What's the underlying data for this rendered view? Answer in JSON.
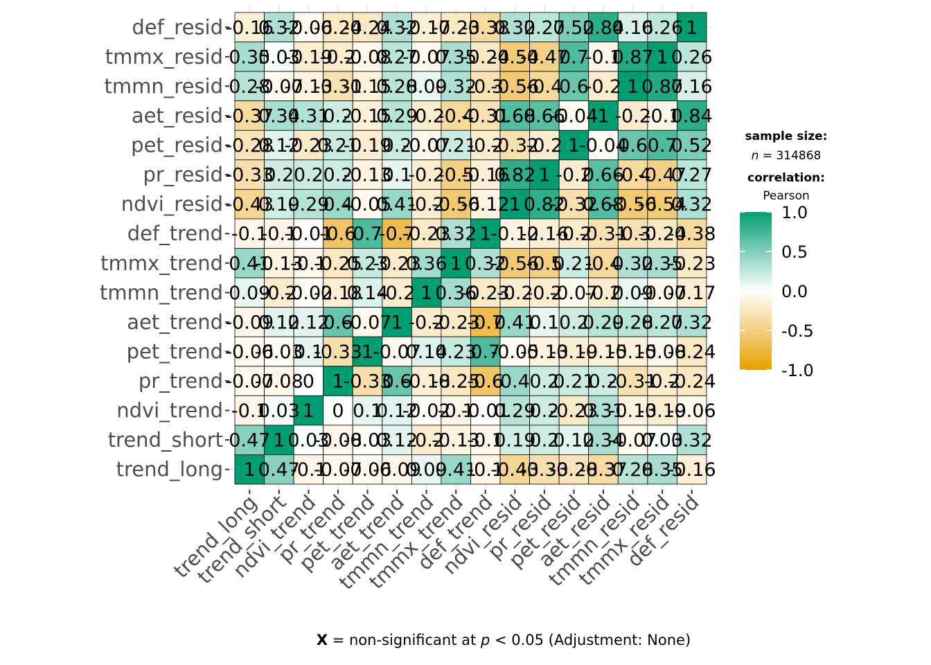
{
  "chart_data": {
    "type": "heatmap",
    "title": "",
    "xlabel": "",
    "ylabel": "",
    "variables": [
      "trend_long",
      "trend_short",
      "ndvi_trend",
      "pr_trend",
      "pet_trend",
      "aet_trend",
      "tmmn_trend",
      "tmmx_trend",
      "def_trend",
      "ndvi_resid",
      "pr_resid",
      "pet_resid",
      "aet_resid",
      "tmmn_resid",
      "tmmx_resid",
      "def_resid"
    ],
    "y_order_top_to_bottom": [
      "def_resid",
      "tmmx_resid",
      "tmmn_resid",
      "aet_resid",
      "pet_resid",
      "pr_resid",
      "ndvi_resid",
      "def_trend",
      "tmmx_trend",
      "tmmn_trend",
      "aet_trend",
      "pet_trend",
      "pr_trend",
      "ndvi_trend",
      "trend_short",
      "trend_long"
    ],
    "matrix": [
      [
        1,
        0.47,
        -0.1,
        -0.07,
        -0.06,
        -0.09,
        0.09,
        0.41,
        -0.1,
        -0.43,
        -0.33,
        -0.28,
        -0.37,
        0.28,
        0.35,
        -0.16
      ],
      [
        0.47,
        1,
        0.03,
        -0.08,
        -0.03,
        0.12,
        -0.2,
        -0.13,
        -0.1,
        0.19,
        0.2,
        0.12,
        0.34,
        -0.07,
        0.03,
        0.32
      ],
      [
        -0.1,
        0.03,
        1,
        0,
        0.1,
        0.12,
        -0.02,
        -0.1,
        -0.01,
        0.29,
        0.2,
        -0.23,
        0.31,
        -0.13,
        -0.19,
        -0.06
      ],
      [
        -0.07,
        -0.08,
        0,
        1,
        -0.33,
        0.6,
        -0.18,
        -0.25,
        -0.6,
        0.4,
        0.2,
        0.21,
        0.2,
        -0.31,
        -0.2,
        -0.24
      ],
      [
        -0.06,
        -0.03,
        0.1,
        -0.33,
        1,
        -0.07,
        0.14,
        0.23,
        0.7,
        -0.05,
        -0.13,
        -0.19,
        -0.15,
        -0.15,
        -0.08,
        -0.24
      ],
      [
        -0.09,
        0.12,
        0.12,
        0.6,
        -0.07,
        1,
        -0.2,
        -0.23,
        -0.7,
        0.41,
        0.1,
        0.2,
        0.29,
        0.28,
        0.27,
        0.32
      ],
      [
        0.09,
        -0.2,
        -0.02,
        -0.18,
        0.14,
        -0.2,
        1,
        0.36,
        -0.23,
        -0.2,
        -0.2,
        -0.07,
        -0.2,
        0.09,
        -0.07,
        -0.17
      ],
      [
        0.41,
        -0.13,
        -0.1,
        -0.25,
        0.23,
        -0.23,
        0.36,
        1,
        0.32,
        -0.56,
        -0.5,
        0.21,
        -0.4,
        0.32,
        0.35,
        -0.23
      ],
      [
        -0.1,
        -0.1,
        -0.01,
        -0.6,
        0.7,
        -0.7,
        -0.23,
        0.32,
        1,
        -0.12,
        -0.16,
        -0.2,
        -0.31,
        -0.3,
        -0.24,
        -0.38
      ],
      [
        -0.43,
        0.19,
        0.29,
        0.4,
        -0.05,
        0.41,
        -0.2,
        -0.56,
        -0.12,
        1,
        0.82,
        -0.32,
        0.68,
        -0.56,
        -0.54,
        0.32
      ],
      [
        -0.33,
        0.2,
        0.2,
        0.2,
        -0.13,
        0.1,
        -0.2,
        -0.5,
        -0.16,
        0.82,
        1,
        -0.2,
        0.66,
        -0.4,
        -0.47,
        0.27
      ],
      [
        -0.28,
        0.12,
        -0.23,
        0.21,
        -0.19,
        0.2,
        -0.07,
        0.21,
        -0.2,
        -0.32,
        -0.2,
        1,
        -0.04,
        0.6,
        0.7,
        0.52
      ],
      [
        -0.37,
        0.34,
        0.31,
        0.2,
        -0.15,
        0.29,
        -0.2,
        -0.4,
        -0.31,
        0.68,
        0.66,
        -0.04,
        1,
        -0.2,
        -0.1,
        0.84
      ],
      [
        0.28,
        -0.07,
        -0.13,
        -0.31,
        -0.15,
        0.28,
        0.09,
        0.32,
        -0.3,
        -0.56,
        -0.4,
        0.6,
        -0.2,
        1,
        0.87,
        0.16
      ],
      [
        0.35,
        0.03,
        -0.19,
        -0.2,
        -0.08,
        0.27,
        -0.07,
        0.35,
        -0.24,
        -0.54,
        -0.47,
        0.7,
        -0.1,
        0.87,
        1,
        0.26
      ],
      [
        -0.16,
        0.32,
        -0.06,
        -0.24,
        -0.24,
        0.32,
        -0.17,
        -0.23,
        -0.38,
        0.32,
        0.27,
        0.52,
        0.84,
        0.16,
        0.26,
        1
      ]
    ],
    "cell_labels_top_to_bottom": [
      [
        "-0.16",
        "0.32",
        "-0.06",
        "-0.24",
        "-0.24",
        "0.32",
        "-0.17",
        "-0.23",
        "-0.38",
        "0.32",
        "0.27",
        "0.52",
        "0.84",
        "0.16",
        "0.26",
        "1"
      ],
      [
        "0.35",
        "0.03",
        "-0.19",
        "-0.2",
        "-0.08",
        "0.27",
        "-0.07",
        "0.35",
        "-0.24",
        "-0.54",
        "-0.47",
        "0.7",
        "-0.1",
        "0.87",
        "1",
        "0.26"
      ],
      [
        "0.28",
        "-0.07",
        "-0.13",
        "-0.31",
        "-0.15",
        "0.28",
        "0.09",
        "0.32",
        "-0.3",
        "-0.56",
        "-0.4",
        "0.6",
        "-0.2",
        "1",
        "0.87",
        "0.16"
      ],
      [
        "-0.37",
        "0.34",
        "0.31",
        "0.2",
        "-0.15",
        "0.29",
        "-0.2",
        "-0.4",
        "-0.31",
        "0.68",
        "0.66",
        "-0.04",
        "1",
        "-0.2",
        "-0.1",
        "0.84"
      ],
      [
        "-0.28",
        "0.12",
        "-0.23",
        "0.21",
        "-0.19",
        "0.2",
        "-0.07",
        "0.21",
        "-0.2",
        "-0.32",
        "-0.2",
        "1",
        "-0.04",
        "0.6",
        "0.7",
        "0.52"
      ],
      [
        "-0.33",
        "0.2",
        "0.2",
        "0.2",
        "-0.13",
        "0.1",
        "-0.2",
        "-0.5",
        "-0.16",
        "0.82",
        "1",
        "-0.2",
        "0.66",
        "-0.4",
        "-0.47",
        "0.27"
      ],
      [
        "-0.43",
        "0.19",
        "0.29",
        "0.4",
        "-0.05",
        "0.41",
        "-0.2",
        "-0.56",
        "-0.12",
        "1",
        "0.82",
        "-0.32",
        "0.68",
        "-0.56",
        "-0.54",
        "0.32"
      ],
      [
        "-0.1",
        "-0.1",
        "-0.01",
        "-0.6",
        "0.7",
        "-0.7",
        "-0.23",
        "0.32",
        "1",
        "-0.12",
        "-0.16",
        "-0.2",
        "-0.31",
        "-0.3",
        "-0.24",
        "-0.38"
      ],
      [
        "0.41",
        "-0.13",
        "-0.1",
        "-0.25",
        "0.23",
        "-0.23",
        "0.36",
        "1",
        "0.32",
        "-0.56",
        "-0.5",
        "0.21",
        "-0.4",
        "0.32",
        "0.35",
        "-0.23"
      ],
      [
        "0.09",
        "-0.2",
        "-0.02",
        "-0.18",
        "0.14",
        "-0.2",
        "1",
        "0.36",
        "-0.23",
        "-0.2",
        "-0.2",
        "-0.07",
        "-0.2",
        "0.09",
        "-0.07",
        "-0.17"
      ],
      [
        "-0.09",
        "0.12",
        "0.12",
        "0.6",
        "-0.07",
        "1",
        "-0.2",
        "-0.23",
        "-0.7",
        "0.41",
        "0.1",
        "0.2",
        "0.29",
        "0.28",
        "0.27",
        "0.32"
      ],
      [
        "-0.06",
        "-0.03",
        "0.1",
        "-0.33",
        "1",
        "-0.07",
        "0.14",
        "0.23",
        "0.7",
        "-0.05",
        "-0.13",
        "-0.19",
        "-0.15",
        "-0.15",
        "-0.08",
        "-0.24"
      ],
      [
        "-0.07",
        "-0.08",
        "0",
        "1",
        "-0.33",
        "0.6",
        "-0.18",
        "-0.25",
        "-0.6",
        "0.4",
        "0.2",
        "0.21",
        "0.2",
        "-0.31",
        "-0.2",
        "-0.24"
      ],
      [
        "-0.1",
        "0.03",
        "1",
        "0",
        "0.1",
        "0.12",
        "-0.02",
        "-0.1",
        "-0.01",
        "0.29",
        "0.2",
        "-0.23",
        "0.31",
        "-0.13",
        "-0.19",
        "-0.06"
      ],
      [
        "0.47",
        "1",
        "0.03",
        "-0.08",
        "-0.03",
        "0.12",
        "-0.2",
        "-0.13",
        "-0.1",
        "0.19",
        "0.2",
        "0.12",
        "0.34",
        "-0.07",
        "0.03",
        "0.32"
      ],
      [
        "1",
        "0.47",
        "-0.1",
        "-0.07",
        "-0.06",
        "-0.09",
        "0.09",
        "0.41",
        "-0.1",
        "-0.43",
        "-0.33",
        "-0.28",
        "-0.37",
        "0.28",
        "0.35",
        "-0.16"
      ]
    ],
    "color_scale": {
      "low": "#E69F00",
      "mid": "#FFFFFF",
      "high": "#009E73",
      "limits": [
        -1,
        1
      ],
      "ticks": [
        "1.0",
        "0.5",
        "0.0",
        "-0.5",
        "-1.0"
      ]
    },
    "legend": {
      "position": "right",
      "title_sample": "sample size:",
      "n_label": "n",
      "n_value": " = 314868",
      "title_corr": "correlation:",
      "corr_method": "Pearson"
    },
    "caption": {
      "bold": "X",
      "part1": " = non-significant at ",
      "italic": "p",
      "part2": " < 0.05 (Adjustment: None)"
    }
  }
}
